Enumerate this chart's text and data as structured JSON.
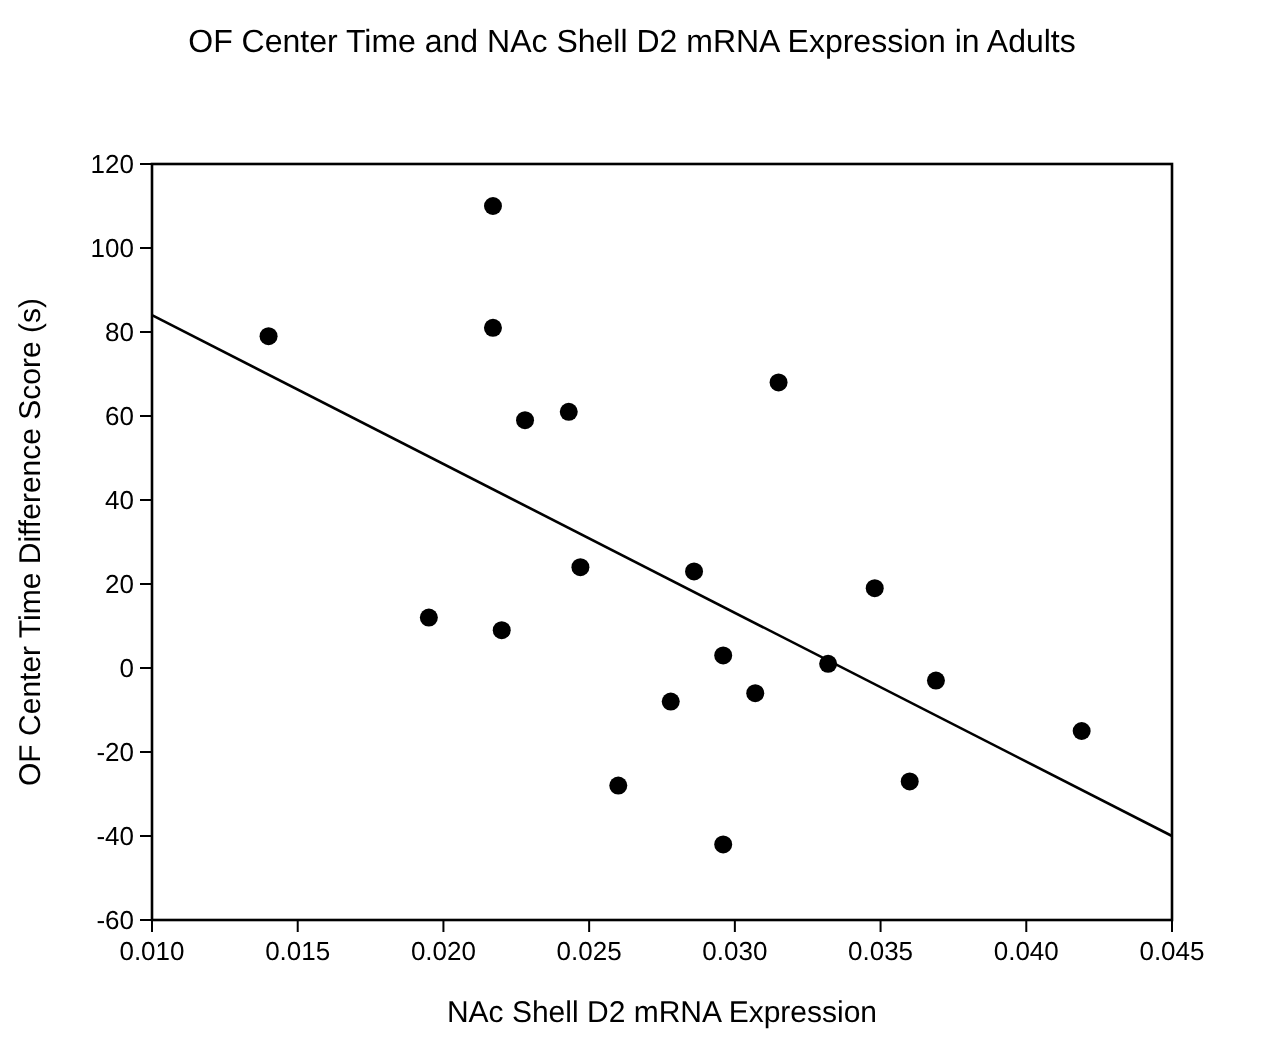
{
  "chart_data": {
    "type": "scatter",
    "title": "OF Center Time and NAc Shell D2 mRNA Expression in Adults",
    "xlabel": "NAc Shell D2 mRNA Expression",
    "ylabel": "OF Center Time Difference Score (s)",
    "xlim": [
      0.01,
      0.045
    ],
    "xticks": [
      {
        "value": 0.01,
        "label": "0.010"
      },
      0.015,
      {
        "value": 0.02,
        "label": "0.020"
      },
      0.025,
      {
        "value": 0.03,
        "label": "0.030"
      },
      0.035,
      {
        "value": 0.04,
        "label": "0.040"
      },
      0.045
    ],
    "ylim": [
      -60,
      120
    ],
    "yticks": [
      -60,
      -40,
      -20,
      0,
      20,
      40,
      60,
      80,
      100,
      120
    ],
    "grid": false,
    "series": [
      {
        "marker": "circle",
        "color": "#000000",
        "x": [
          0.014,
          0.0217,
          0.0217,
          0.0195,
          0.022,
          0.0228,
          0.0243,
          0.0247,
          0.026,
          0.0278,
          0.0286,
          0.0296,
          0.0296,
          0.0307,
          0.0315,
          0.0332,
          0.0348,
          0.036,
          0.0369,
          0.0419
        ],
        "values": [
          79,
          110,
          81,
          12,
          9,
          59,
          61,
          24,
          -28,
          -8,
          23,
          3,
          -42,
          -6,
          68,
          1,
          19,
          -27,
          -3,
          -15
        ]
      },
      {
        "type": "line",
        "color": "#000000",
        "x": [
          0.01,
          0.045
        ],
        "values": [
          84,
          -40
        ]
      }
    ]
  }
}
